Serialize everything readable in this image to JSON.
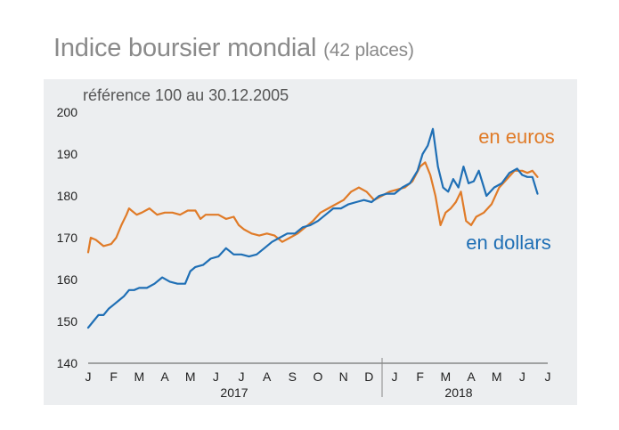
{
  "header": {
    "title": "Indice boursier mondial",
    "subtitle": "(42 places)"
  },
  "chart_data": {
    "type": "line",
    "title": "Indice boursier mondial (42 places)",
    "ylabel": "référence 100 au 30.12.2005",
    "ylim": [
      140,
      200
    ],
    "yticks": [
      140,
      150,
      160,
      170,
      180,
      190,
      200
    ],
    "xlim": [
      0,
      18
    ],
    "x_ticks": [
      "J",
      "F",
      "M",
      "A",
      "M",
      "J",
      "J",
      "A",
      "S",
      "O",
      "N",
      "D",
      "J",
      "F",
      "M",
      "A",
      "M",
      "J",
      "J"
    ],
    "year_labels": [
      {
        "label": "2017",
        "from": 0,
        "to": 12
      },
      {
        "label": "2018",
        "from": 12,
        "to": 18
      }
    ],
    "grid": false,
    "series": [
      {
        "name": "en euros",
        "color": "#e07b28",
        "x": [
          0,
          0.1,
          0.3,
          0.6,
          0.9,
          1.1,
          1.3,
          1.5,
          1.6,
          1.7,
          1.9,
          2.1,
          2.4,
          2.7,
          3.0,
          3.3,
          3.6,
          3.9,
          4.2,
          4.4,
          4.6,
          4.9,
          5.1,
          5.4,
          5.7,
          5.9,
          6.1,
          6.4,
          6.7,
          7.0,
          7.3,
          7.6,
          7.9,
          8.2,
          8.5,
          8.8,
          9.1,
          9.4,
          9.7,
          10.0,
          10.3,
          10.6,
          10.9,
          11.2,
          11.5,
          11.8,
          12.1,
          12.4,
          12.7,
          13.0,
          13.2,
          13.4,
          13.6,
          13.8,
          14.0,
          14.2,
          14.4,
          14.6,
          14.8,
          15.0,
          15.2,
          15.5,
          15.8,
          16.1,
          16.4,
          16.7,
          17.0,
          17.2,
          17.4,
          17.6
        ],
        "values": [
          166.5,
          170,
          169.5,
          168,
          168.5,
          170,
          173,
          175.5,
          177,
          176.5,
          175.5,
          176,
          177,
          175.5,
          176,
          176,
          175.5,
          176.5,
          176.5,
          174.5,
          175.5,
          175.5,
          175.5,
          174.5,
          175,
          173,
          172,
          171,
          170.5,
          171,
          170.5,
          169,
          170,
          171,
          172.5,
          174,
          176,
          177,
          178,
          179,
          181,
          182,
          181,
          179,
          180,
          181,
          181.5,
          182,
          183.5,
          187,
          188,
          185,
          180,
          173,
          176,
          177,
          178.5,
          181,
          174,
          173,
          175,
          176,
          178,
          182,
          184,
          186,
          186,
          185.5,
          186,
          184.5
        ]
      },
      {
        "name": "en dollars",
        "color": "#1f6fb5",
        "x": [
          0,
          0.2,
          0.4,
          0.6,
          0.8,
          1.0,
          1.2,
          1.4,
          1.6,
          1.8,
          2.0,
          2.3,
          2.6,
          2.9,
          3.2,
          3.5,
          3.8,
          4.0,
          4.2,
          4.5,
          4.8,
          5.1,
          5.4,
          5.7,
          6.0,
          6.3,
          6.6,
          6.9,
          7.2,
          7.5,
          7.8,
          8.1,
          8.4,
          8.7,
          9.0,
          9.3,
          9.6,
          9.9,
          10.2,
          10.5,
          10.8,
          11.1,
          11.4,
          11.7,
          12.0,
          12.3,
          12.6,
          12.9,
          13.1,
          13.3,
          13.5,
          13.7,
          13.9,
          14.1,
          14.3,
          14.5,
          14.7,
          14.9,
          15.1,
          15.3,
          15.6,
          15.9,
          16.2,
          16.5,
          16.8,
          17.0,
          17.2,
          17.4,
          17.6
        ],
        "values": [
          148.5,
          150,
          151.5,
          151.5,
          153,
          154,
          155,
          156,
          157.5,
          157.5,
          158,
          158,
          159,
          160.5,
          159.5,
          159,
          159,
          162,
          163,
          163.5,
          165,
          165.5,
          167.5,
          166,
          166,
          165.5,
          166,
          167.5,
          169,
          170,
          171,
          171,
          172.5,
          173,
          174,
          175.5,
          177,
          177,
          178,
          178.5,
          179,
          178.5,
          180,
          180.5,
          180.5,
          182,
          183,
          186,
          190,
          192,
          196,
          187,
          182,
          181,
          184,
          182,
          187,
          183,
          183.5,
          186,
          180,
          182,
          183,
          185.5,
          186.5,
          185,
          184.5,
          184.5,
          180.5
        ]
      }
    ]
  }
}
